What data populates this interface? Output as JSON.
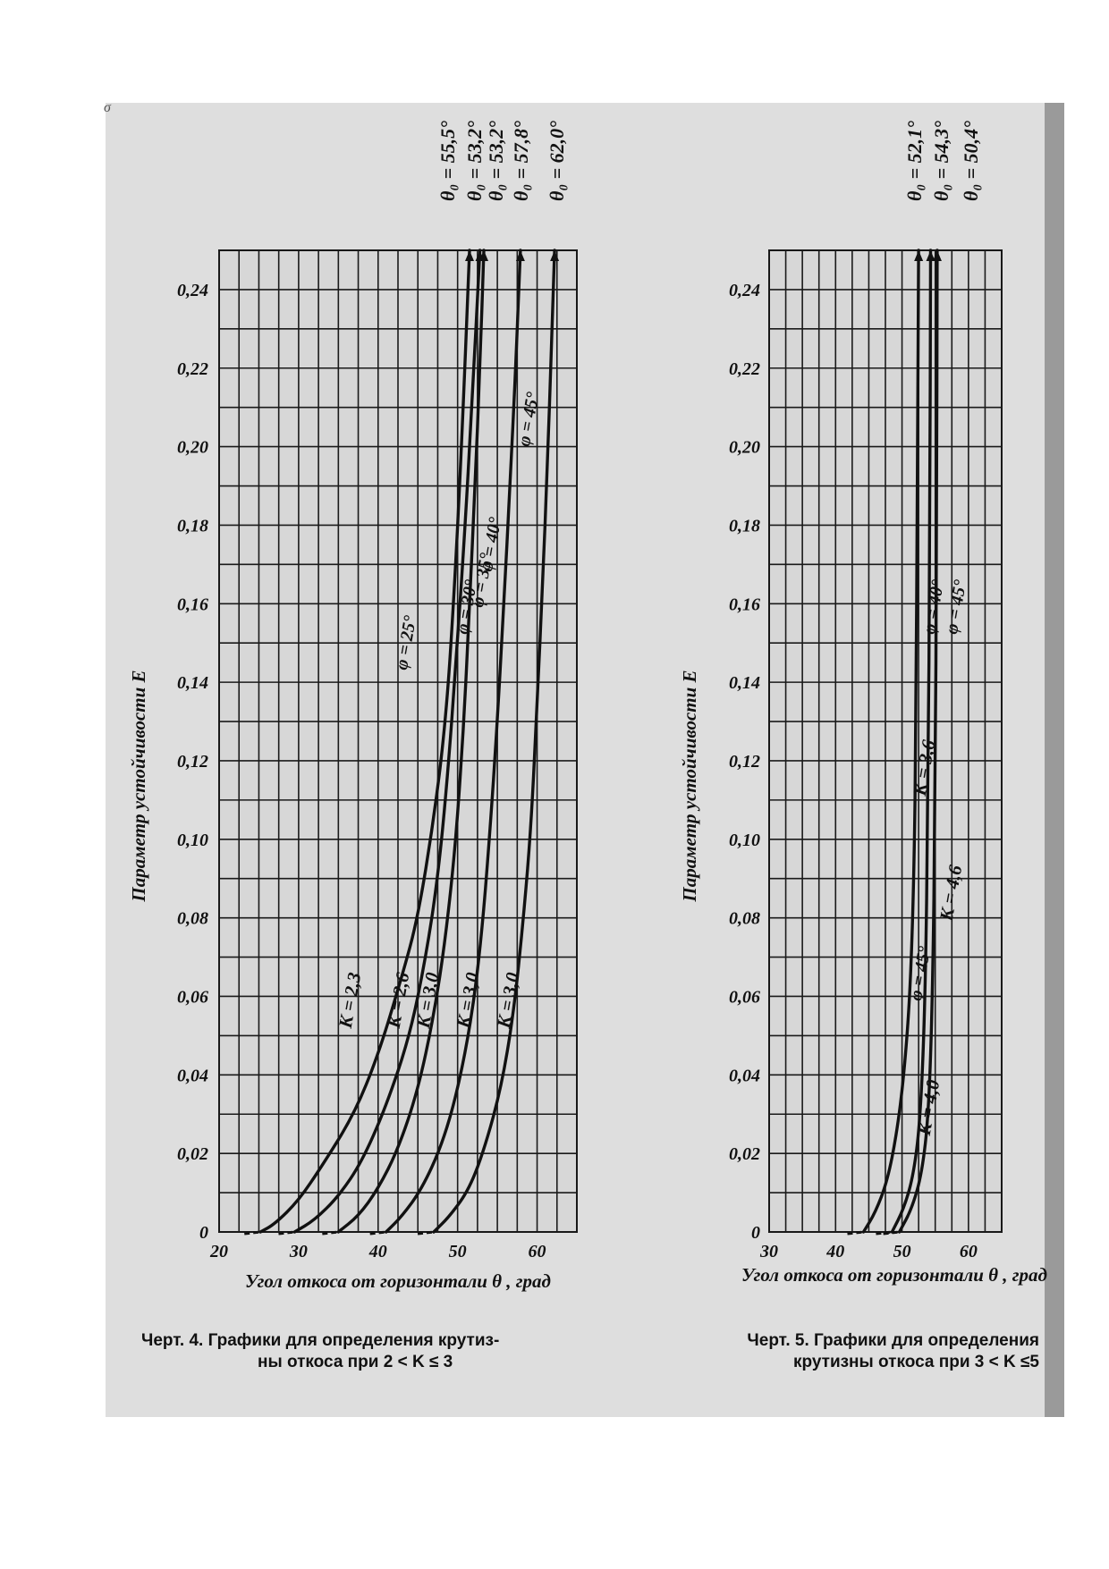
{
  "stray_mark": "σ",
  "chart_data": [
    {
      "type": "line",
      "title": "",
      "xlabel": "Угол откоса от горизонтали θ , град",
      "ylabel": "Параметр устойчивости E",
      "xlim": [
        20,
        65
      ],
      "ylim": [
        0,
        0.25
      ],
      "x_ticks": [
        "20",
        "30",
        "40",
        "50",
        "60"
      ],
      "y_ticks": [
        "0",
        "0,02",
        "0,04",
        "0,06",
        "0,08",
        "0,10",
        "0,12",
        "0,14",
        "0,16",
        "0,18",
        "0,20",
        "0,22",
        "0,24"
      ],
      "grid": true,
      "series": [
        {
          "name": "φ = 25°",
          "k_label": "K = 2,3",
          "theta0_label": "θ₀ = 55,5°",
          "x": [
            25.2,
            27,
            30,
            33,
            37,
            40,
            43,
            45,
            47,
            48.5,
            49.5,
            50.5,
            51.5
          ],
          "y": [
            0,
            0.002,
            0.008,
            0.017,
            0.03,
            0.045,
            0.065,
            0.08,
            0.105,
            0.13,
            0.16,
            0.2,
            0.25
          ]
        },
        {
          "name": "φ = 30°",
          "k_label": "K = 2,6",
          "theta0_label": "θ₀ = 53,2°",
          "x": [
            29.5,
            32,
            35,
            38,
            41,
            44,
            46,
            47.5,
            48.7,
            49.8,
            50.8,
            51.8,
            52.8
          ],
          "y": [
            0,
            0.003,
            0.009,
            0.018,
            0.032,
            0.05,
            0.07,
            0.09,
            0.115,
            0.145,
            0.175,
            0.21,
            0.25
          ]
        },
        {
          "name": "φ = 35°",
          "k_label": "K = 3,0",
          "theta0_label": "θ₀ = 53,2°",
          "x": [
            35,
            37.5,
            40,
            42.5,
            45,
            47,
            48.5,
            49.8,
            50.8,
            51.5,
            52.2,
            52.8,
            53.3
          ],
          "y": [
            0,
            0.004,
            0.011,
            0.021,
            0.036,
            0.055,
            0.075,
            0.1,
            0.13,
            0.16,
            0.19,
            0.22,
            0.25
          ]
        },
        {
          "name": "φ = 40°",
          "k_label": "K = 3,0",
          "theta0_label": "θ₀ = 57,8°",
          "x": [
            41,
            43,
            45.5,
            48,
            50,
            51.8,
            53,
            54,
            55,
            55.8,
            56.6,
            57.3,
            57.9
          ],
          "y": [
            0,
            0.004,
            0.011,
            0.022,
            0.036,
            0.055,
            0.075,
            0.1,
            0.13,
            0.16,
            0.19,
            0.22,
            0.25
          ]
        },
        {
          "name": "φ = 45°",
          "k_label": "K = 3,0",
          "theta0_label": "θ₀ = 62,0°",
          "x": [
            47,
            49,
            51.5,
            53.5,
            55.5,
            57,
            58.3,
            59.3,
            60,
            60.7,
            61.3,
            61.8,
            62.2
          ],
          "y": [
            0,
            0.004,
            0.011,
            0.022,
            0.037,
            0.055,
            0.08,
            0.105,
            0.135,
            0.165,
            0.195,
            0.225,
            0.25
          ]
        }
      ],
      "axis_caption": "Угол откоса от горизонтали θ , град"
    },
    {
      "type": "line",
      "title": "",
      "xlabel": "Угол откоса от горизонтали θ , град",
      "ylabel": "Параметр устойчивости E",
      "xlim": [
        30,
        65
      ],
      "ylim": [
        0,
        0.25
      ],
      "x_ticks": [
        "30",
        "40",
        "50",
        "60"
      ],
      "y_ticks": [
        "0",
        "0,02",
        "0,04",
        "0,06",
        "0,08",
        "0,10",
        "0,12",
        "0,14",
        "0,16",
        "0,18",
        "0,20",
        "0,22",
        "0,24"
      ],
      "grid": true,
      "series": [
        {
          "name": "φ = 45°",
          "k_label": "K = 4,0",
          "theta0_label": "θ₀ = 52,1°",
          "x": [
            44.2,
            46,
            47.8,
            49.2,
            50.3,
            51.2,
            51.8,
            52.1,
            52.3,
            52.5
          ],
          "y": [
            0,
            0.005,
            0.013,
            0.025,
            0.04,
            0.06,
            0.09,
            0.13,
            0.19,
            0.25
          ]
        },
        {
          "name": "φ = 40°",
          "k_label": "K = 3,6",
          "theta0_label": "θ₀ = 54,3°",
          "x": [
            48.5,
            50.3,
            51.8,
            52.8,
            53.5,
            53.9,
            54.2,
            54.3
          ],
          "y": [
            0,
            0.006,
            0.015,
            0.03,
            0.06,
            0.11,
            0.18,
            0.25
          ]
        },
        {
          "name": "φ = 45°",
          "k_label": "K = 4,6",
          "theta0_label": "θ₀ = 50,4°",
          "x": [
            49.6,
            51.5,
            53,
            54,
            54.6,
            55,
            55.2,
            55.3
          ],
          "y": [
            0,
            0.006,
            0.015,
            0.03,
            0.06,
            0.11,
            0.18,
            0.25
          ]
        }
      ],
      "axis_caption": "Угол откоса от горизонтали θ , град"
    }
  ],
  "captions": {
    "left_line1": "Черт. 4. Графики для определения крутиз-",
    "left_line2": "ны откоса при 2 < K ≤ 3",
    "right_line1": "Черт. 5.  Графики для определения",
    "right_line2": "крутизны откоса при 3 < K ≤5"
  },
  "colors": {
    "paper": "#dedede",
    "ink": "#111111",
    "grid": "#1a1a1a"
  }
}
